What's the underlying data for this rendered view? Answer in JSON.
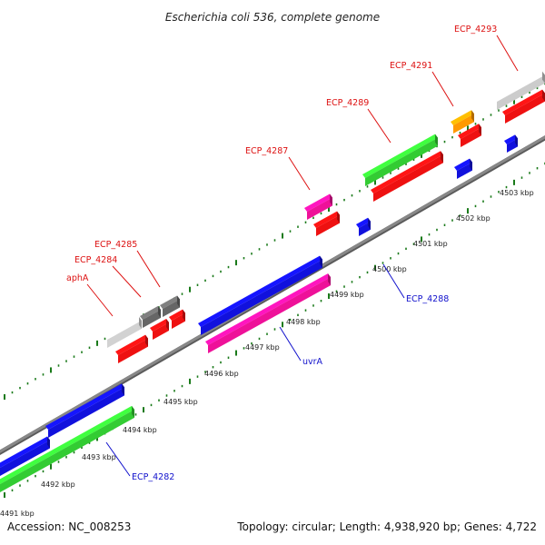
{
  "title": "Escherichia coli 536, complete genome",
  "accession_label": "Accession: NC_008253",
  "topology_label": "Topology: circular; Length: 4,938,920 bp; Genes: 4,722",
  "colors": {
    "forward_label": "#dd1111",
    "reverse_label": "#1111cc",
    "backbone": "#888888",
    "tick": "#1a7a1a"
  },
  "kbp_ticks": [
    "4491 kbp",
    "4492 kbp",
    "4493 kbp",
    "4494 kbp",
    "4495 kbp",
    "4496 kbp",
    "4497 kbp",
    "4498 kbp",
    "4499 kbp",
    "4500 kbp",
    "4501 kbp",
    "4502 kbp",
    "4503 kbp"
  ],
  "genes": [
    {
      "label": "aphA",
      "strand": "forward",
      "color": "#d0d0d0"
    },
    {
      "label": "ECP_4284",
      "strand": "forward",
      "color": "#606060"
    },
    {
      "label": "ECP_4285",
      "strand": "forward",
      "color": "#606060"
    },
    {
      "label": "ECP_4287",
      "strand": "forward",
      "color": "#ee1199"
    },
    {
      "label": "ECP_4289",
      "strand": "forward",
      "color": "#33cc33"
    },
    {
      "label": "ECP_4291",
      "strand": "forward",
      "color": "#ff9900"
    },
    {
      "label": "ECP_4293",
      "strand": "forward",
      "color": "#cccccc"
    },
    {
      "label": "ECP_4282",
      "strand": "reverse",
      "color": "#1111dd"
    },
    {
      "label": "uvrA",
      "strand": "reverse",
      "color": "#1111dd"
    },
    {
      "label": "ECP_4288",
      "strand": "reverse",
      "color": "#1111dd"
    }
  ]
}
